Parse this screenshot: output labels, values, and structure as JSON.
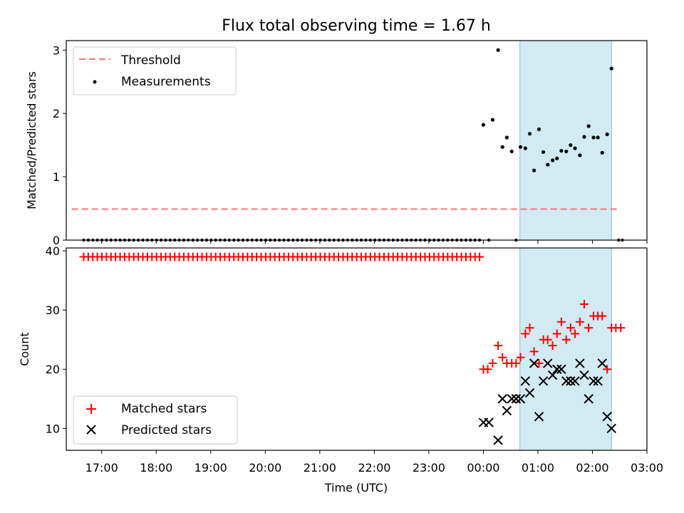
{
  "chart_data": [
    {
      "type": "scatter",
      "title": "Flux total observing time = 1.67 h",
      "xlabel": "",
      "ylabel": "Matched/Predicted stars",
      "x_unit": "hours since 17:00 UTC on the first day",
      "xlim": [
        -0.65,
        10
      ],
      "ylim": [
        0,
        3.15
      ],
      "yticks": [
        0,
        1,
        2,
        3
      ],
      "shaded_region": {
        "x_start": 7.67,
        "x_end": 9.35,
        "color": "#add8e6"
      },
      "threshold": {
        "name": "Threshold",
        "y": 0.49,
        "x_start": -0.55,
        "x_end": 9.5,
        "color": "#f08080"
      },
      "legend": {
        "position": "top-left",
        "entries": [
          "Threshold",
          "Measurements"
        ]
      },
      "series": [
        {
          "name": "Measurements",
          "color": "#000000",
          "points": [
            [
              7.0,
              1.82
            ],
            [
              7.17,
              1.9
            ],
            [
              7.27,
              3.0
            ],
            [
              7.35,
              1.47
            ],
            [
              7.43,
              1.62
            ],
            [
              7.52,
              1.4
            ],
            [
              7.68,
              1.47
            ],
            [
              7.77,
              1.45
            ],
            [
              7.85,
              1.68
            ],
            [
              7.93,
              1.1
            ],
            [
              8.02,
              1.75
            ],
            [
              8.1,
              1.39
            ],
            [
              8.18,
              1.19
            ],
            [
              8.27,
              1.26
            ],
            [
              8.35,
              1.29
            ],
            [
              8.43,
              1.41
            ],
            [
              8.52,
              1.4
            ],
            [
              8.6,
              1.5
            ],
            [
              8.68,
              1.45
            ],
            [
              8.77,
              1.34
            ],
            [
              8.85,
              1.63
            ],
            [
              8.93,
              1.8
            ],
            [
              9.02,
              1.62
            ],
            [
              9.1,
              1.62
            ],
            [
              9.18,
              1.38
            ],
            [
              9.27,
              1.67
            ],
            [
              9.35,
              2.71
            ]
          ],
          "zero_points": {
            "x_start": -0.33,
            "x_end": 6.93,
            "count": 88,
            "y": 0
          },
          "zero_points_extra": [
            [
              7.1,
              0
            ],
            [
              7.6,
              0
            ],
            [
              9.48,
              0
            ],
            [
              9.55,
              0
            ]
          ]
        }
      ]
    },
    {
      "type": "scatter",
      "title": "",
      "xlabel": "Time (UTC)",
      "ylabel": "Count",
      "x_unit": "hours since 17:00 UTC on the first day",
      "xlim": [
        -0.65,
        10
      ],
      "ylim": [
        6.3,
        40.5
      ],
      "yticks": [
        10,
        20,
        30,
        40
      ],
      "xticks": [
        0,
        1,
        2,
        3,
        4,
        5,
        6,
        7,
        8,
        9,
        10
      ],
      "xtick_labels": [
        "17:00",
        "18:00",
        "19:00",
        "20:00",
        "21:00",
        "22:00",
        "23:00",
        "00:00",
        "01:00",
        "02:00",
        "03:00"
      ],
      "shaded_region": {
        "x_start": 7.67,
        "x_end": 9.35,
        "color": "#add8e6"
      },
      "legend": {
        "position": "bottom-left",
        "entries": [
          "Matched stars",
          "Predicted stars"
        ]
      },
      "series": [
        {
          "name": "Matched stars",
          "marker": "plus",
          "color": "#ff0000",
          "constant_run": {
            "x_start": -0.33,
            "x_end": 6.93,
            "count": 88,
            "y": 39
          },
          "points": [
            [
              7.0,
              20
            ],
            [
              7.08,
              20
            ],
            [
              7.17,
              21
            ],
            [
              7.27,
              24
            ],
            [
              7.35,
              22
            ],
            [
              7.43,
              21
            ],
            [
              7.52,
              21
            ],
            [
              7.6,
              21
            ],
            [
              7.68,
              22
            ],
            [
              7.77,
              26
            ],
            [
              7.85,
              27
            ],
            [
              7.93,
              23
            ],
            [
              8.02,
              21
            ],
            [
              8.1,
              25
            ],
            [
              8.18,
              25
            ],
            [
              8.27,
              24
            ],
            [
              8.35,
              26
            ],
            [
              8.43,
              28
            ],
            [
              8.52,
              25
            ],
            [
              8.6,
              27
            ],
            [
              8.68,
              26
            ],
            [
              8.77,
              28
            ],
            [
              8.85,
              31
            ],
            [
              8.93,
              27
            ],
            [
              9.02,
              29
            ],
            [
              9.1,
              29
            ],
            [
              9.18,
              29
            ],
            [
              9.27,
              20
            ],
            [
              9.35,
              27
            ],
            [
              9.43,
              27
            ],
            [
              9.52,
              27
            ]
          ]
        },
        {
          "name": "Predicted stars",
          "marker": "x",
          "color": "#000000",
          "points": [
            [
              7.0,
              11
            ],
            [
              7.1,
              11
            ],
            [
              7.27,
              8
            ],
            [
              7.35,
              15
            ],
            [
              7.43,
              13
            ],
            [
              7.52,
              15
            ],
            [
              7.6,
              15
            ],
            [
              7.68,
              15
            ],
            [
              7.77,
              18
            ],
            [
              7.85,
              16
            ],
            [
              7.93,
              21
            ],
            [
              8.02,
              12
            ],
            [
              8.1,
              18
            ],
            [
              8.18,
              21
            ],
            [
              8.27,
              19
            ],
            [
              8.35,
              20
            ],
            [
              8.43,
              20
            ],
            [
              8.52,
              18
            ],
            [
              8.6,
              18
            ],
            [
              8.68,
              18
            ],
            [
              8.77,
              21
            ],
            [
              8.85,
              19
            ],
            [
              8.93,
              15
            ],
            [
              9.02,
              18
            ],
            [
              9.1,
              18
            ],
            [
              9.18,
              21
            ],
            [
              9.27,
              12
            ],
            [
              9.35,
              10
            ]
          ]
        }
      ]
    }
  ]
}
